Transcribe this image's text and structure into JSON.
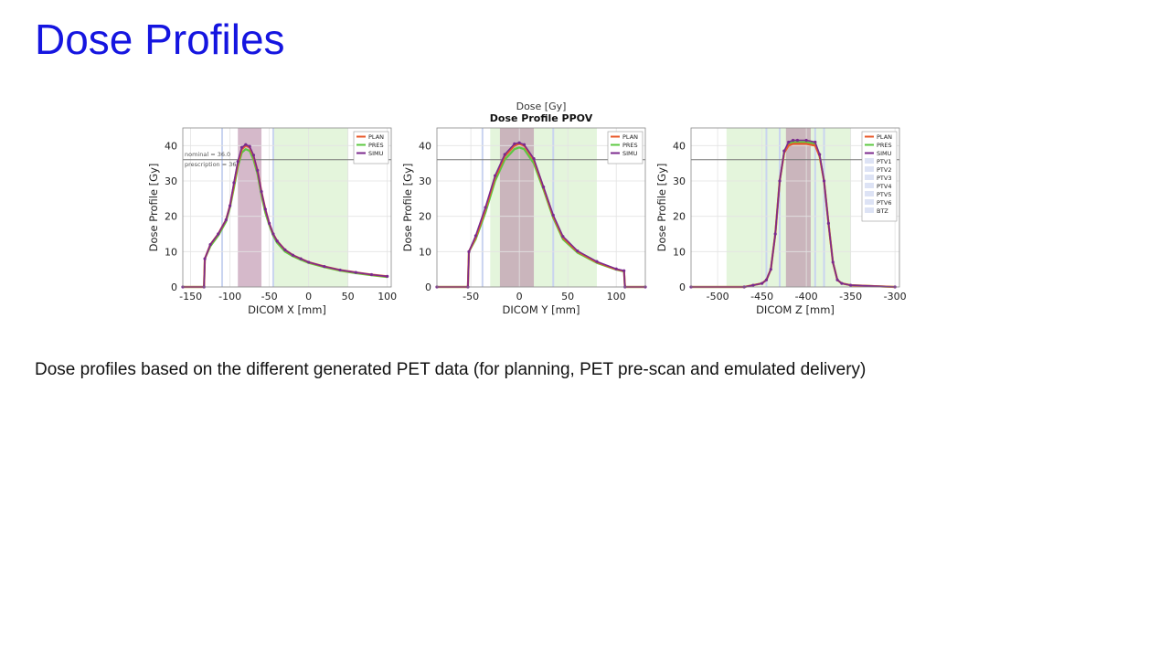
{
  "slide": {
    "title": "Dose Profiles",
    "caption": "Dose profiles based on the different generated PET data (for planning, PET pre-scan and emulated delivery)"
  },
  "figure": {
    "top_label": "Dose [Gy]",
    "title": "Dose Profile PPOV"
  },
  "colors": {
    "PLAN": "#e8582a",
    "PRES": "#5cc842",
    "SIMU": "#7b2a8e",
    "roi_fill": "#b98aa6",
    "green_band": "#dff3d6",
    "blue_band": "#c9d4f0",
    "ref_line": "#777777",
    "title_blue": "#1515e0"
  },
  "chart_data": [
    {
      "type": "line",
      "xlabel": "DICOM X [mm]",
      "ylabel": "Dose Profile [Gy]",
      "xlim": [
        -160,
        105
      ],
      "ylim": [
        0,
        45
      ],
      "x_ticks": [
        -150,
        -100,
        -50,
        0,
        50,
        100
      ],
      "y_ticks": [
        0,
        10,
        20,
        30,
        40
      ],
      "grid": true,
      "legend": [
        "PLAN",
        "PRES",
        "SIMU"
      ],
      "legend_position": "top-right",
      "annotations": [
        "nominal = 36.0",
        "prescription = 36"
      ],
      "reference_line_y": 36,
      "x": [
        -160,
        -133,
        -132,
        -125,
        -115,
        -105,
        -100,
        -95,
        -90,
        -85,
        -80,
        -75,
        -70,
        -65,
        -60,
        -55,
        -50,
        -45,
        -40,
        -30,
        -20,
        -10,
        0,
        20,
        40,
        60,
        80,
        100
      ],
      "series": [
        {
          "name": "PLAN",
          "values": [
            0,
            0,
            8,
            12,
            15,
            19,
            23,
            29,
            35,
            39,
            40,
            39.5,
            37,
            33,
            27,
            22,
            18,
            15,
            13,
            10.5,
            9,
            8,
            7,
            5.8,
            4.8,
            4.1,
            3.5,
            3
          ]
        },
        {
          "name": "PRES",
          "values": [
            0,
            0,
            8,
            11.5,
            14.5,
            18.5,
            22.5,
            28,
            34,
            38,
            39,
            38.5,
            36,
            32,
            26,
            21,
            17.5,
            14.5,
            12.5,
            10,
            8.7,
            7.7,
            6.8,
            5.6,
            4.6,
            3.9,
            3.3,
            2.8
          ]
        },
        {
          "name": "SIMU",
          "values": [
            0,
            0,
            8,
            12,
            15,
            19,
            23,
            29.5,
            35.5,
            39.5,
            40.3,
            39.8,
            37.3,
            33,
            27,
            22,
            18,
            15,
            13,
            10.5,
            9,
            8,
            7,
            5.8,
            4.8,
            4.1,
            3.5,
            3
          ]
        }
      ],
      "roi_band": [
        -90,
        -60
      ],
      "green_band": [
        -45,
        50
      ],
      "blue_lines": [
        -110,
        -45
      ]
    },
    {
      "type": "line",
      "xlabel": "DICOM Y [mm]",
      "ylabel": "Dose Profile [Gy]",
      "xlim": [
        -85,
        130
      ],
      "ylim": [
        0,
        45
      ],
      "x_ticks": [
        -50,
        0,
        50,
        100
      ],
      "y_ticks": [
        0,
        10,
        20,
        30,
        40
      ],
      "grid": true,
      "legend": [
        "PLAN",
        "PRES",
        "SIMU"
      ],
      "legend_position": "top-right",
      "reference_line_y": 36,
      "x": [
        -85,
        -53,
        -52,
        -45,
        -35,
        -25,
        -15,
        -5,
        0,
        5,
        15,
        25,
        35,
        45,
        60,
        80,
        100,
        108,
        109,
        130
      ],
      "series": [
        {
          "name": "PLAN",
          "values": [
            0,
            0,
            10,
            14,
            22,
            31,
            37,
            40,
            40.5,
            40,
            36,
            28,
            20,
            14,
            10,
            7,
            5,
            4.5,
            0,
            0
          ]
        },
        {
          "name": "PRES",
          "values": [
            0,
            0,
            10,
            13.5,
            21,
            30,
            36,
            39,
            39.5,
            39,
            35,
            27.5,
            19.5,
            13.5,
            9.7,
            6.8,
            4.9,
            4.4,
            0,
            0
          ]
        },
        {
          "name": "SIMU",
          "values": [
            0,
            0,
            10,
            14.5,
            22.5,
            31.5,
            37.5,
            40.5,
            40.8,
            40.3,
            36.3,
            28.3,
            20.3,
            14.3,
            10.2,
            7.2,
            5.1,
            4.6,
            0,
            0
          ]
        }
      ],
      "roi_band": [
        -20,
        15
      ],
      "green_band": [
        -30,
        80
      ],
      "blue_lines": [
        -38,
        35
      ]
    },
    {
      "type": "line",
      "xlabel": "DICOM Z [mm]",
      "ylabel": "Dose Profile [Gy]",
      "xlim": [
        -530,
        -295
      ],
      "ylim": [
        0,
        45
      ],
      "x_ticks": [
        -500,
        -450,
        -400,
        -350,
        -300
      ],
      "y_ticks": [
        0,
        10,
        20,
        30,
        40
      ],
      "grid": true,
      "legend": [
        "PLAN",
        "PRES",
        "SIMU",
        "PTV1",
        "PTV2",
        "PTV3",
        "PTV4",
        "PTV5",
        "PTV6",
        "BTZ"
      ],
      "legend_position": "top-right",
      "reference_line_y": 36,
      "x": [
        -530,
        -470,
        -460,
        -450,
        -445,
        -440,
        -435,
        -430,
        -425,
        -420,
        -415,
        -410,
        -400,
        -390,
        -385,
        -380,
        -375,
        -370,
        -365,
        -360,
        -350,
        -300
      ],
      "series": [
        {
          "name": "PLAN",
          "values": [
            0,
            0,
            0.5,
            1,
            2,
            5,
            15,
            30,
            38,
            40,
            40.5,
            40.5,
            40.5,
            40,
            37,
            30,
            18,
            7,
            2,
            1,
            0.5,
            0
          ]
        },
        {
          "name": "PRES",
          "values": [
            0,
            0,
            0.5,
            1,
            2,
            5,
            15,
            30,
            38,
            40.5,
            41,
            41,
            41,
            40.5,
            37,
            30,
            18,
            7,
            2,
            1,
            0.5,
            0
          ]
        },
        {
          "name": "SIMU",
          "values": [
            0,
            0,
            0.5,
            1,
            2,
            5,
            15,
            30,
            38.5,
            41,
            41.5,
            41.5,
            41.5,
            41,
            37.5,
            30,
            18,
            7,
            2,
            1,
            0.5,
            0
          ]
        }
      ],
      "roi_band": [
        -423,
        -395
      ],
      "green_band": [
        -490,
        -350
      ],
      "blue_lines": [
        -445,
        -430,
        -390,
        -380
      ]
    }
  ]
}
